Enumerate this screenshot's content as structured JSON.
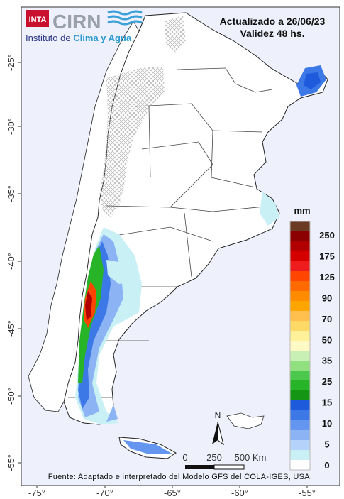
{
  "header": {
    "updated": "Actualizado a 26/06/23",
    "validity": "Validez 48 hs."
  },
  "logo": {
    "inta": "INTA",
    "cirn": "CIRN",
    "institute_prefix": "Instituto de ",
    "institute_highlight": "Clima y Agua"
  },
  "legend": {
    "unit": "mm",
    "labels": [
      "250",
      "175",
      "125",
      "90",
      "70",
      "50",
      "35",
      "25",
      "15",
      "10",
      "5",
      "0"
    ],
    "colors": [
      "#6b3a22",
      "#8b0000",
      "#b20000",
      "#d40000",
      "#ee1c1c",
      "#ff4500",
      "#ff6a00",
      "#ff8c00",
      "#ffa500",
      "#ffc04d",
      "#ffd966",
      "#fff09a",
      "#fff9c4",
      "#c8f0b4",
      "#90e080",
      "#4cc84c",
      "#28b428",
      "#149614",
      "#1e5adc",
      "#3c78e6",
      "#6496f0",
      "#8cb4f5",
      "#b4d2fa",
      "#c8f0f5",
      "#ffffff"
    ]
  },
  "axes": {
    "lat_labels": [
      "-25°",
      "-30°",
      "-35°",
      "-40°",
      "-45°",
      "-50°",
      "-55°"
    ],
    "lon_labels": [
      "-75°",
      "-70°",
      "-65°",
      "-60°",
      "-55°"
    ]
  },
  "scale": {
    "north": "N",
    "labels": [
      "0",
      "250",
      "500 Km"
    ]
  },
  "footer": {
    "source": "Fuente: Adaptado e interpretado del Modelo GFS del COLA-IGES, USA."
  }
}
